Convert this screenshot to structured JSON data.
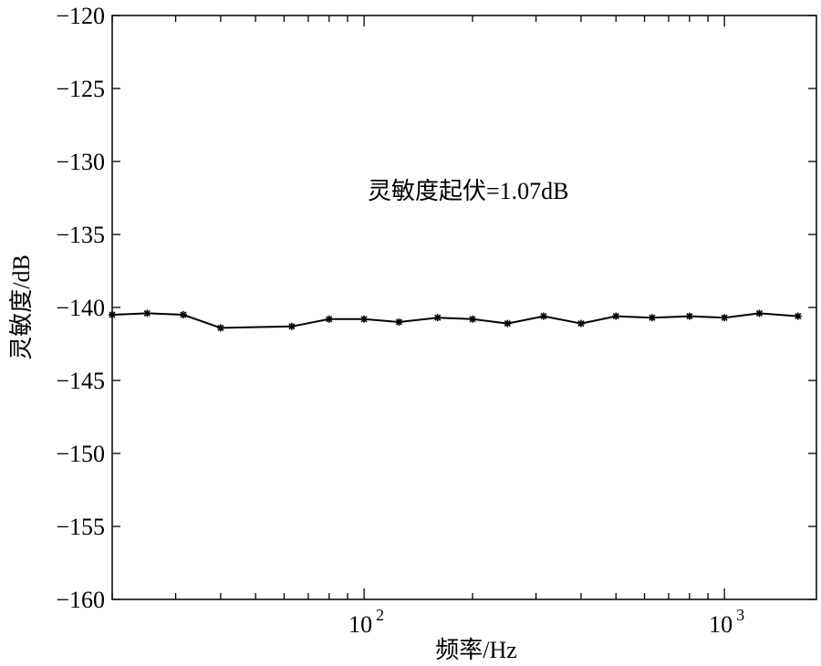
{
  "chart_data": {
    "type": "line",
    "title": "",
    "xlabel": "频率/Hz",
    "ylabel": "灵敏度/dB",
    "xscale": "log",
    "xlim": [
      20,
      1800
    ],
    "ylim": [
      -160,
      -120
    ],
    "yticks": [
      -120,
      -125,
      -130,
      -135,
      -140,
      -145,
      -150,
      -155,
      -160
    ],
    "ytick_labels": [
      "−120",
      "−125",
      "−130",
      "−135",
      "−140",
      "−145",
      "−150",
      "−155",
      "−160"
    ],
    "xtick_labels": [
      {
        "base": "10",
        "exp": "2",
        "value": 100
      },
      {
        "base": "10",
        "exp": "3",
        "value": 1000
      }
    ],
    "grid": false,
    "annotation": "灵敏度起伏=1.07dB",
    "series": [
      {
        "marker": "star",
        "color": "#000000",
        "x": [
          20,
          25,
          31.5,
          40,
          63,
          80,
          100,
          125,
          160,
          200,
          250,
          315,
          400,
          500,
          630,
          800,
          1000,
          1250,
          1600
        ],
        "y": [
          -140.5,
          -140.4,
          -140.5,
          -141.4,
          -141.3,
          -140.8,
          -140.8,
          -141.0,
          -140.7,
          -140.8,
          -141.1,
          -140.6,
          -141.1,
          -140.6,
          -140.7,
          -140.6,
          -140.7,
          -140.4,
          -140.6
        ]
      }
    ]
  }
}
